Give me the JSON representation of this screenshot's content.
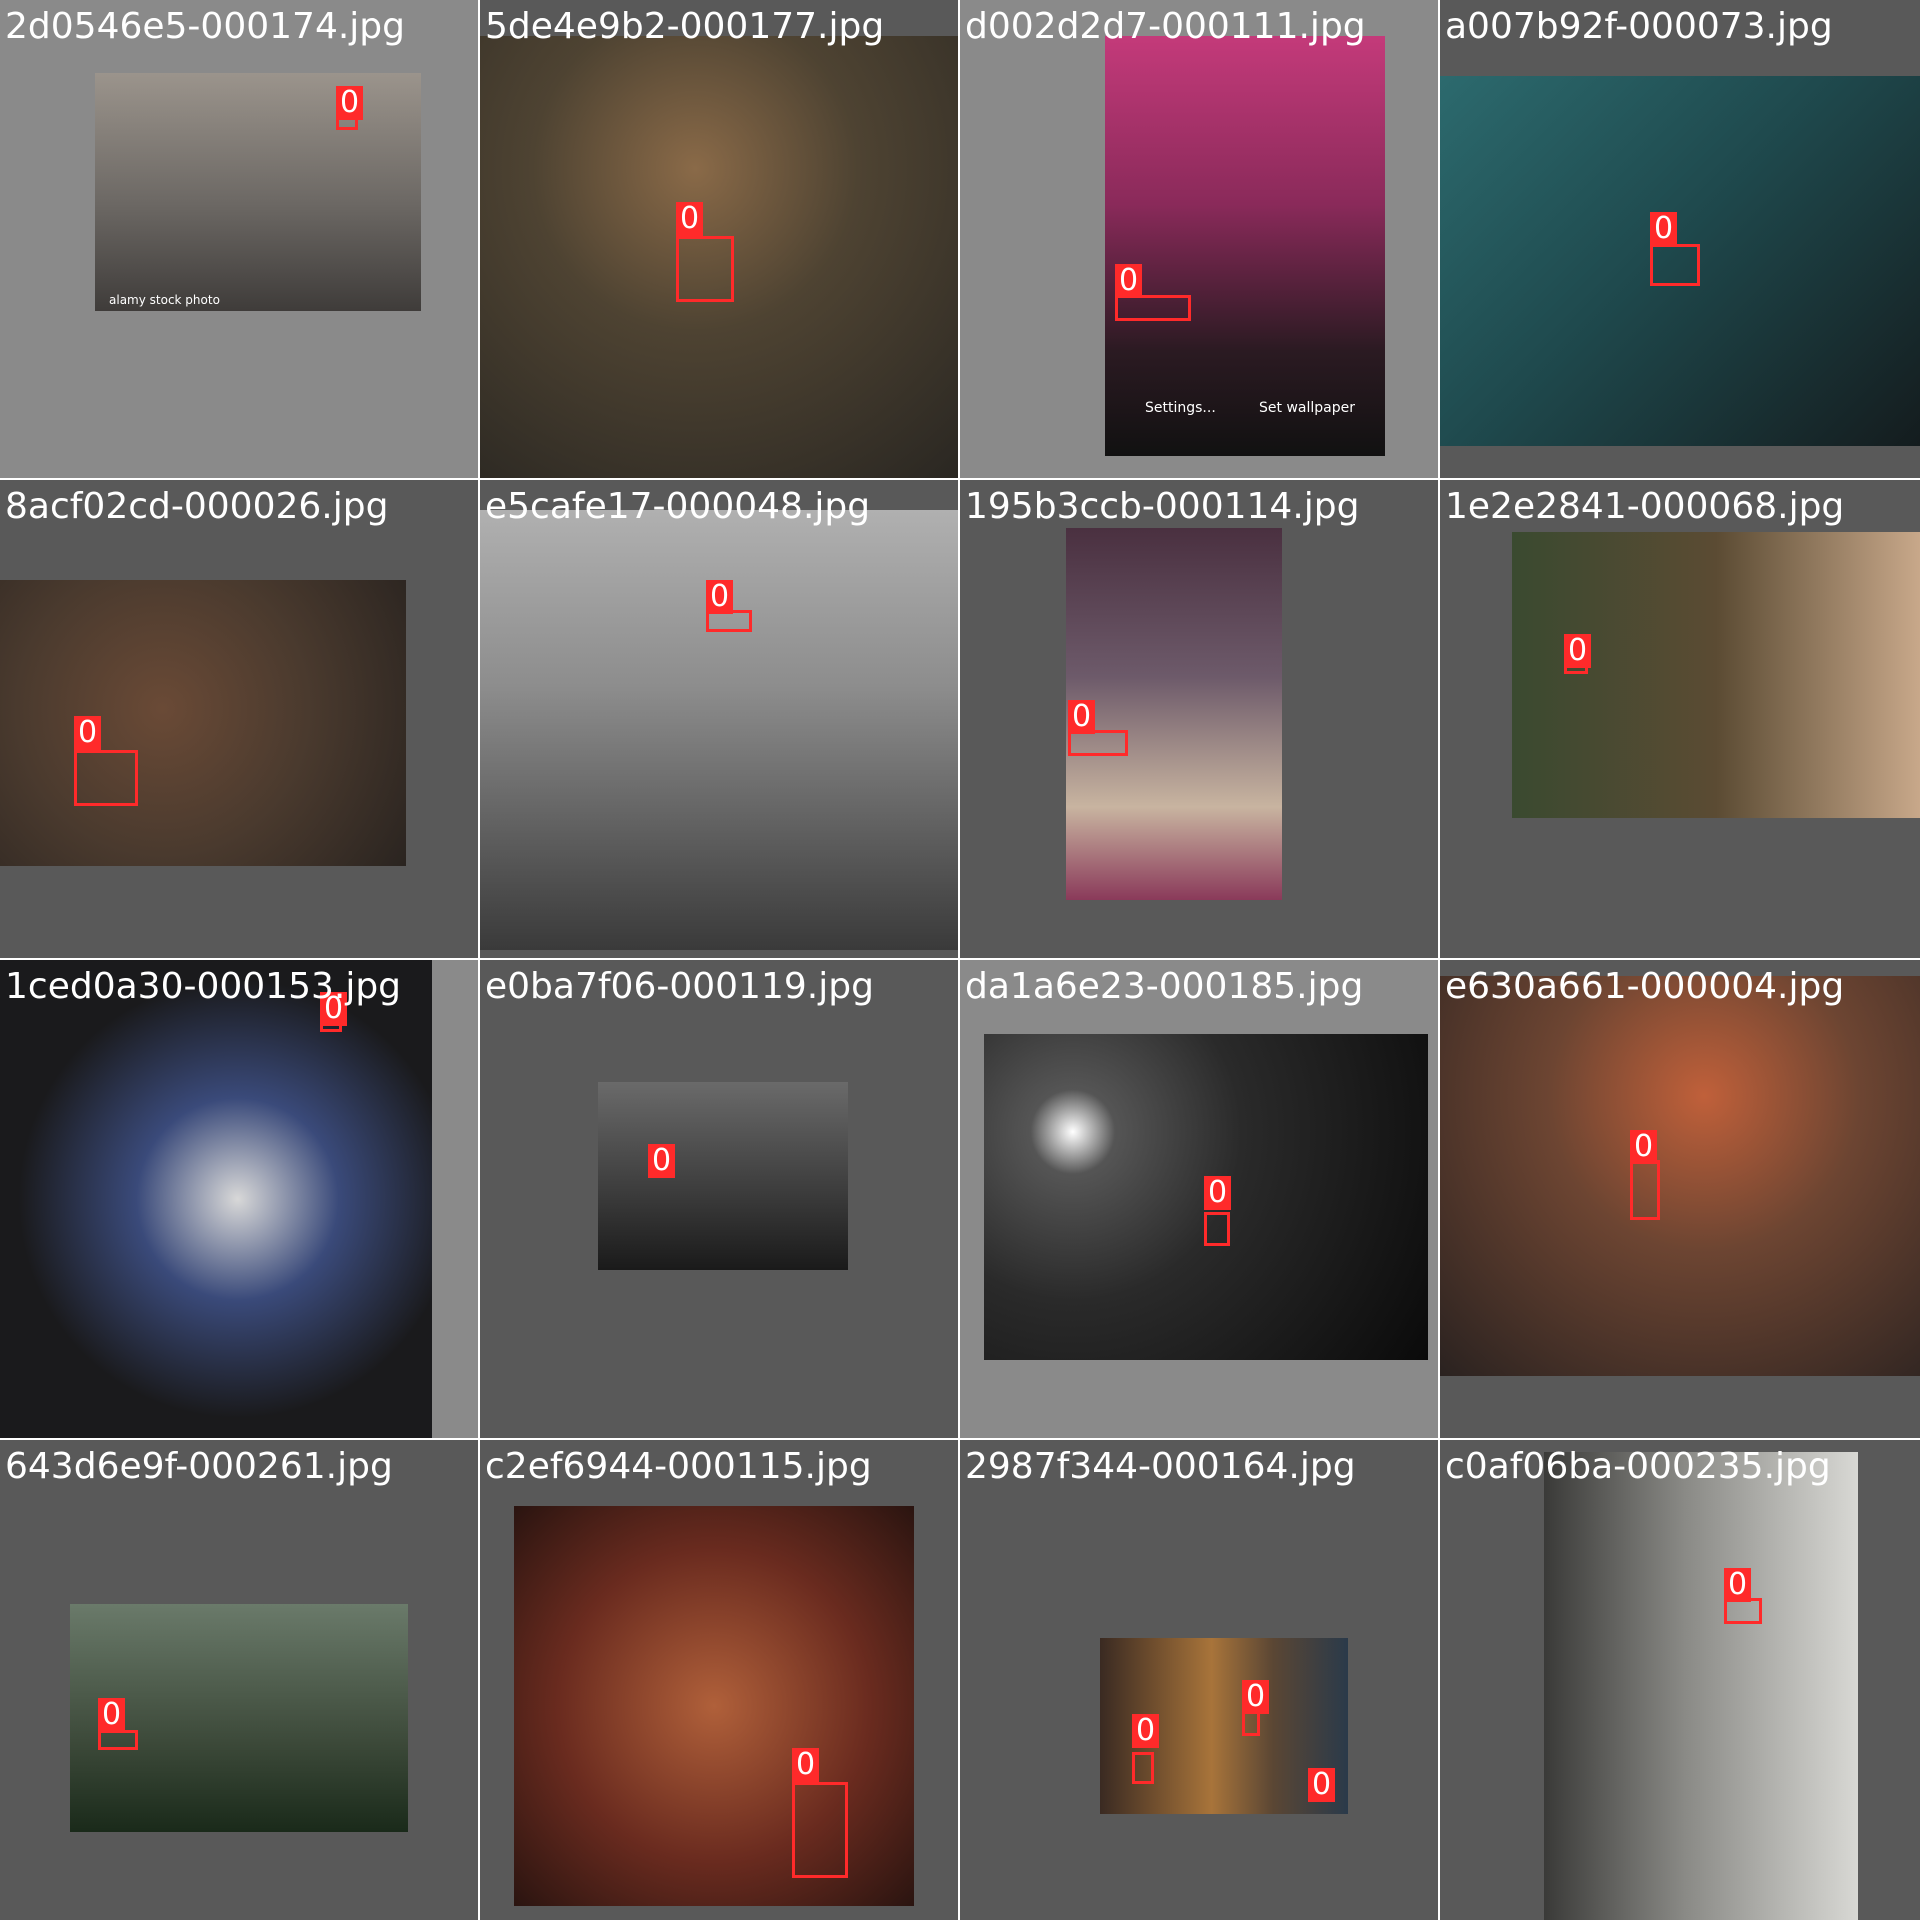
{
  "colors": {
    "background_dark": "#595959",
    "background_light": "#8a8a8a",
    "detection": "#ff2a2a",
    "filename_text": "#ffffff"
  },
  "class_label": "0",
  "tiles": [
    {
      "filename": "2d0546e5-000174.jpg",
      "bg": "#8a8a8a",
      "photo_color": "#6c6864",
      "caption": "alamy stock photo",
      "boxes": 1
    },
    {
      "filename": "5de4e9b2-000177.jpg",
      "bg": "#595959",
      "photo_color": "#3b3830",
      "boxes": 1
    },
    {
      "filename": "d002d2d7-000111.jpg",
      "bg": "#8a8a8a",
      "photo_color": "#2b1a22",
      "caption_left": "Settings...",
      "caption_right": "Set wallpaper",
      "boxes": 1
    },
    {
      "filename": "a007b92f-000073.jpg",
      "bg": "#595959",
      "photo_color": "#1f4a4e",
      "boxes": 1
    },
    {
      "filename": "8acf02cd-000026.jpg",
      "bg": "#595959",
      "photo_color": "#4a3a2e",
      "boxes": 1
    },
    {
      "filename": "e5cafe17-000048.jpg",
      "bg": "#595959",
      "photo_color": "#8d8d8d",
      "boxes": 1
    },
    {
      "filename": "195b3ccb-000114.jpg",
      "bg": "#595959",
      "photo_color": "#6d5a6a",
      "boxes": 1
    },
    {
      "filename": "1e2e2841-000068.jpg",
      "bg": "#595959",
      "photo_color": "#5b4b33",
      "boxes": 1
    },
    {
      "filename": "1ced0a30-000153.jpg",
      "bg": "#8a8a8a",
      "photo_color": "#1a1a1c",
      "boxes": 1
    },
    {
      "filename": "e0ba7f06-000119.jpg",
      "bg": "#595959",
      "photo_color": "#3b3b3b",
      "boxes": 1
    },
    {
      "filename": "da1a6e23-000185.jpg",
      "bg": "#8a8a8a",
      "photo_color": "#2a2a2a",
      "boxes": 1
    },
    {
      "filename": "e630a661-000004.jpg",
      "bg": "#595959",
      "photo_color": "#6d4532",
      "boxes": 1
    },
    {
      "filename": "643d6e9f-000261.jpg",
      "bg": "#595959",
      "photo_color": "#3d4a3a",
      "boxes": 1
    },
    {
      "filename": "c2ef6944-000115.jpg",
      "bg": "#595959",
      "photo_color": "#6a2b1f",
      "boxes": 1
    },
    {
      "filename": "2987f344-000164.jpg",
      "bg": "#595959",
      "photo_color": "#5a4634",
      "boxes": 3
    },
    {
      "filename": "c0af06ba-000235.jpg",
      "bg": "#595959",
      "photo_color": "#8a8a86",
      "boxes": 1
    }
  ]
}
